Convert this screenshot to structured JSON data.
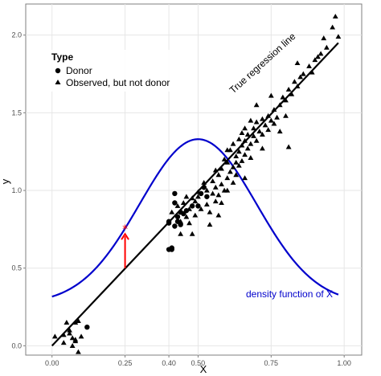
{
  "chart_data": {
    "type": "scatter",
    "xlabel": "X",
    "ylabel": "y",
    "xlim": [
      -0.09,
      1.06
    ],
    "ylim": [
      -0.06,
      2.2
    ],
    "xticks": [
      {
        "value": 0.0,
        "label": "0.00"
      },
      {
        "value": 0.25,
        "label": "0.25"
      },
      {
        "value": 0.4,
        "label": "0.40"
      },
      {
        "value": 0.5,
        "label": "0.50"
      },
      {
        "value": 0.75,
        "label": "0.75"
      },
      {
        "value": 1.0,
        "label": "1.00"
      }
    ],
    "yticks": [
      {
        "value": 0.0,
        "label": "0.0"
      },
      {
        "value": 0.5,
        "label": "0.5"
      },
      {
        "value": 1.0,
        "label": "1.0"
      },
      {
        "value": 1.5,
        "label": "1.5"
      },
      {
        "value": 2.0,
        "label": "2.0"
      }
    ],
    "grid": true,
    "legend": {
      "title": "Type",
      "placement": "top-left",
      "entries": [
        {
          "label": "Donor",
          "shape": "circle"
        },
        {
          "label": "Observed, but not donor",
          "shape": "triangle"
        }
      ]
    },
    "regression_line": {
      "label": "True regression line",
      "x": [
        0.0,
        0.98
      ],
      "y": [
        0.0,
        1.95
      ],
      "color": "#000000"
    },
    "density_curve": {
      "label": "density function of X",
      "color": "#0000cc",
      "x_range": [
        0.0,
        0.98
      ],
      "mean": 0.5,
      "sd": 0.2,
      "y_base": 0.27,
      "y_peak": 1.33
    },
    "arrow": {
      "x": 0.25,
      "y_from": 0.5,
      "y_to": 0.72,
      "color": "#ff0000",
      "marker": "*"
    },
    "series": [
      {
        "name": "Donor",
        "shape": "circle",
        "points": [
          [
            0.12,
            0.12
          ],
          [
            0.4,
            0.79
          ],
          [
            0.4,
            0.8
          ],
          [
            0.4,
            0.62
          ],
          [
            0.41,
            0.63
          ],
          [
            0.41,
            0.62
          ],
          [
            0.42,
            0.77
          ],
          [
            0.42,
            0.92
          ],
          [
            0.42,
            0.98
          ],
          [
            0.43,
            0.8
          ],
          [
            0.43,
            0.83
          ],
          [
            0.44,
            0.78
          ],
          [
            0.44,
            0.86
          ],
          [
            0.45,
            0.85
          ],
          [
            0.46,
            0.87
          ],
          [
            0.48,
            0.9
          ],
          [
            0.5,
            0.9
          ],
          [
            0.51,
            0.98
          ],
          [
            0.52,
            1.02
          ],
          [
            0.53,
            0.96
          ]
        ]
      },
      {
        "name": "Observed, but not donor",
        "shape": "triangle",
        "points": [
          [
            0.01,
            0.06
          ],
          [
            0.04,
            0.07
          ],
          [
            0.04,
            0.02
          ],
          [
            0.05,
            0.15
          ],
          [
            0.06,
            0.08
          ],
          [
            0.06,
            0.1
          ],
          [
            0.07,
            0.05
          ],
          [
            0.07,
            0.0
          ],
          [
            0.08,
            0.15
          ],
          [
            0.08,
            0.03
          ],
          [
            0.09,
            0.16
          ],
          [
            0.09,
            -0.04
          ],
          [
            0.08,
            0.04
          ],
          [
            0.1,
            0.06
          ],
          [
            0.41,
            0.86
          ],
          [
            0.43,
            0.9
          ],
          [
            0.44,
            0.8
          ],
          [
            0.45,
            0.92
          ],
          [
            0.46,
            0.83
          ],
          [
            0.47,
            0.88
          ],
          [
            0.47,
            0.79
          ],
          [
            0.48,
            0.95
          ],
          [
            0.49,
            0.84
          ],
          [
            0.49,
            0.93
          ],
          [
            0.5,
            0.96
          ],
          [
            0.51,
            0.88
          ],
          [
            0.52,
            1.05
          ],
          [
            0.53,
            0.91
          ],
          [
            0.53,
            1.0
          ],
          [
            0.54,
            0.86
          ],
          [
            0.55,
            0.98
          ],
          [
            0.55,
            1.06
          ],
          [
            0.56,
            1.02
          ],
          [
            0.56,
            0.93
          ],
          [
            0.57,
            1.1
          ],
          [
            0.57,
            0.97
          ],
          [
            0.58,
            1.04
          ],
          [
            0.58,
            1.14
          ],
          [
            0.59,
            1.0
          ],
          [
            0.59,
            1.2
          ],
          [
            0.6,
            1.08
          ],
          [
            0.6,
            1.18
          ],
          [
            0.61,
            1.12
          ],
          [
            0.61,
            1.26
          ],
          [
            0.62,
            1.15
          ],
          [
            0.62,
            1.3
          ],
          [
            0.63,
            1.22
          ],
          [
            0.63,
            1.1
          ],
          [
            0.64,
            1.25
          ],
          [
            0.64,
            1.33
          ],
          [
            0.65,
            1.19
          ],
          [
            0.65,
            1.29
          ],
          [
            0.66,
            1.23
          ],
          [
            0.66,
            1.32
          ],
          [
            0.67,
            1.27
          ],
          [
            0.67,
            1.36
          ],
          [
            0.68,
            1.3
          ],
          [
            0.68,
            1.21
          ],
          [
            0.69,
            1.35
          ],
          [
            0.69,
            1.4
          ],
          [
            0.7,
            1.32
          ],
          [
            0.7,
            1.44
          ],
          [
            0.71,
            1.38
          ],
          [
            0.72,
            1.46
          ],
          [
            0.72,
            1.36
          ],
          [
            0.73,
            1.42
          ],
          [
            0.74,
            1.48
          ],
          [
            0.74,
            1.39
          ],
          [
            0.75,
            1.45
          ],
          [
            0.76,
            1.52
          ],
          [
            0.77,
            1.47
          ],
          [
            0.78,
            1.55
          ],
          [
            0.79,
            1.6
          ],
          [
            0.8,
            1.58
          ],
          [
            0.81,
            1.65
          ],
          [
            0.82,
            1.62
          ],
          [
            0.83,
            1.7
          ],
          [
            0.84,
            1.67
          ],
          [
            0.86,
            1.75
          ],
          [
            0.88,
            1.8
          ],
          [
            0.9,
            1.84
          ],
          [
            0.92,
            1.88
          ],
          [
            0.94,
            1.92
          ],
          [
            0.96,
            2.05
          ],
          [
            0.97,
            2.12
          ],
          [
            0.98,
            1.99
          ],
          [
            0.75,
            1.61
          ],
          [
            0.78,
            1.38
          ],
          [
            0.8,
            1.48
          ],
          [
            0.81,
            1.28
          ],
          [
            0.66,
            1.4
          ],
          [
            0.6,
            1.0
          ],
          [
            0.58,
            0.92
          ],
          [
            0.57,
            0.84
          ],
          [
            0.54,
            0.78
          ],
          [
            0.6,
            1.26
          ],
          [
            0.62,
            1.05
          ],
          [
            0.64,
            1.16
          ],
          [
            0.76,
            1.43
          ],
          [
            0.72,
            1.27
          ],
          [
            0.7,
            1.55
          ],
          [
            0.68,
            1.45
          ],
          [
            0.66,
            1.08
          ],
          [
            0.85,
            1.73
          ],
          [
            0.89,
            1.76
          ],
          [
            0.84,
            1.82
          ],
          [
            0.93,
            1.98
          ],
          [
            0.91,
            1.86
          ],
          [
            0.56,
            1.13
          ],
          [
            0.5,
            0.99
          ],
          [
            0.48,
            0.72
          ],
          [
            0.46,
            0.96
          ],
          [
            0.44,
            0.72
          ],
          [
            0.63,
            1.18
          ],
          [
            0.65,
            1.37
          ]
        ]
      }
    ]
  }
}
